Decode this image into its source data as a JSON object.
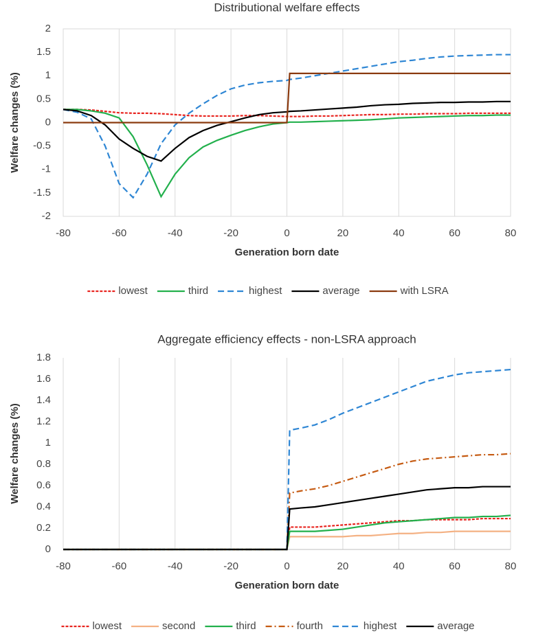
{
  "chart_data": [
    {
      "type": "line",
      "title": "Distributional welfare effects",
      "x_label": "Generation born date",
      "y_label": "Welfare changes (%)",
      "x": [
        -80,
        -75,
        -70,
        -65,
        -60,
        -55,
        -50,
        -45,
        -40,
        -35,
        -30,
        -25,
        -20,
        -15,
        -10,
        -5,
        0,
        1,
        5,
        10,
        15,
        20,
        25,
        30,
        35,
        40,
        45,
        50,
        55,
        60,
        65,
        70,
        75,
        80
      ],
      "xlim": [
        -80,
        80
      ],
      "xticks": [
        -80,
        -60,
        -40,
        -20,
        0,
        20,
        40,
        60,
        80
      ],
      "ylim": [
        -2,
        2
      ],
      "yticks": [
        -2,
        -1.5,
        -1,
        -0.5,
        0,
        0.5,
        1,
        1.5,
        2
      ],
      "grid": "x",
      "frame": true,
      "series": [
        {
          "name": "lowest",
          "color": "#e8241f",
          "dash": "short",
          "values": [
            0.28,
            0.28,
            0.27,
            0.24,
            0.21,
            0.2,
            0.2,
            0.19,
            0.17,
            0.15,
            0.14,
            0.14,
            0.14,
            0.15,
            0.15,
            0.14,
            0.13,
            0.13,
            0.13,
            0.14,
            0.14,
            0.15,
            0.16,
            0.17,
            0.17,
            0.18,
            0.18,
            0.19,
            0.19,
            0.19,
            0.2,
            0.2,
            0.2,
            0.2
          ]
        },
        {
          "name": "third",
          "color": "#22b04c",
          "dash": "solid",
          "values": [
            0.28,
            0.28,
            0.25,
            0.2,
            0.1,
            -0.3,
            -0.9,
            -1.58,
            -1.1,
            -0.75,
            -0.52,
            -0.38,
            -0.27,
            -0.17,
            -0.09,
            -0.03,
            0,
            0.01,
            0.01,
            0.02,
            0.03,
            0.04,
            0.05,
            0.06,
            0.08,
            0.1,
            0.11,
            0.12,
            0.13,
            0.14,
            0.15,
            0.15,
            0.16,
            0.16
          ]
        },
        {
          "name": "highest",
          "color": "#2e86d4",
          "dash": "long",
          "values": [
            0.28,
            0.22,
            0.08,
            -0.5,
            -1.3,
            -1.6,
            -1.1,
            -0.45,
            -0.05,
            0.2,
            0.4,
            0.58,
            0.72,
            0.8,
            0.85,
            0.88,
            0.9,
            0.92,
            0.95,
            1.0,
            1.05,
            1.1,
            1.15,
            1.2,
            1.25,
            1.3,
            1.33,
            1.37,
            1.4,
            1.42,
            1.43,
            1.44,
            1.45,
            1.45
          ]
        },
        {
          "name": "average",
          "color": "#000000",
          "dash": "solid",
          "values": [
            0.28,
            0.25,
            0.15,
            -0.05,
            -0.35,
            -0.55,
            -0.72,
            -0.82,
            -0.55,
            -0.32,
            -0.17,
            -0.06,
            0.02,
            0.1,
            0.17,
            0.21,
            0.23,
            0.24,
            0.25,
            0.27,
            0.29,
            0.31,
            0.33,
            0.36,
            0.38,
            0.39,
            0.41,
            0.42,
            0.43,
            0.43,
            0.44,
            0.44,
            0.45,
            0.45
          ]
        },
        {
          "name": "with LSRA",
          "color": "#8b3a0f",
          "dash": "solid",
          "values": [
            0,
            0,
            0,
            0,
            0,
            0,
            0,
            0,
            0,
            0,
            0,
            0,
            0,
            0,
            0,
            0,
            0,
            1.05,
            1.05,
            1.05,
            1.05,
            1.05,
            1.05,
            1.05,
            1.05,
            1.05,
            1.05,
            1.05,
            1.05,
            1.05,
            1.05,
            1.05,
            1.05,
            1.05
          ]
        }
      ]
    },
    {
      "type": "line",
      "title": "Aggregate efficiency effects - non-LSRA approach",
      "x_label": "Generation born date",
      "y_label": "Welfare changes (%)",
      "x": [
        -80,
        -75,
        -70,
        -65,
        -60,
        -55,
        -50,
        -45,
        -40,
        -35,
        -30,
        -25,
        -20,
        -15,
        -10,
        -5,
        0,
        1,
        5,
        10,
        15,
        20,
        25,
        30,
        35,
        40,
        45,
        50,
        55,
        60,
        65,
        70,
        75,
        80
      ],
      "xlim": [
        -80,
        80
      ],
      "xticks": [
        -80,
        -60,
        -40,
        -20,
        0,
        20,
        40,
        60,
        80
      ],
      "ylim": [
        0,
        1.8
      ],
      "yticks": [
        0,
        0.2,
        0.4,
        0.6,
        0.8,
        1,
        1.2,
        1.4,
        1.6,
        1.8
      ],
      "grid": "x",
      "frame": false,
      "series": [
        {
          "name": "lowest",
          "color": "#e8241f",
          "dash": "short",
          "values": [
            0,
            0,
            0,
            0,
            0,
            0,
            0,
            0,
            0,
            0,
            0,
            0,
            0,
            0,
            0,
            0,
            0,
            0.21,
            0.21,
            0.21,
            0.22,
            0.23,
            0.24,
            0.25,
            0.26,
            0.27,
            0.27,
            0.28,
            0.28,
            0.28,
            0.28,
            0.29,
            0.29,
            0.29
          ]
        },
        {
          "name": "second",
          "color": "#f4b183",
          "dash": "solid",
          "values": [
            0,
            0,
            0,
            0,
            0,
            0,
            0,
            0,
            0,
            0,
            0,
            0,
            0,
            0,
            0,
            0,
            0,
            0.12,
            0.12,
            0.12,
            0.12,
            0.12,
            0.13,
            0.13,
            0.14,
            0.15,
            0.15,
            0.16,
            0.16,
            0.17,
            0.17,
            0.17,
            0.17,
            0.17
          ]
        },
        {
          "name": "third",
          "color": "#22b04c",
          "dash": "solid",
          "values": [
            0,
            0,
            0,
            0,
            0,
            0,
            0,
            0,
            0,
            0,
            0,
            0,
            0,
            0,
            0,
            0,
            0,
            0.17,
            0.17,
            0.17,
            0.18,
            0.19,
            0.21,
            0.23,
            0.25,
            0.26,
            0.27,
            0.28,
            0.29,
            0.3,
            0.3,
            0.31,
            0.31,
            0.32
          ]
        },
        {
          "name": "fourth",
          "color": "#c55a11",
          "dash": "dashdot",
          "values": [
            0,
            0,
            0,
            0,
            0,
            0,
            0,
            0,
            0,
            0,
            0,
            0,
            0,
            0,
            0,
            0,
            0,
            0.53,
            0.55,
            0.57,
            0.6,
            0.64,
            0.68,
            0.72,
            0.76,
            0.8,
            0.83,
            0.85,
            0.86,
            0.87,
            0.88,
            0.89,
            0.89,
            0.9
          ]
        },
        {
          "name": "highest",
          "color": "#2e86d4",
          "dash": "long",
          "values": [
            0,
            0,
            0,
            0,
            0,
            0,
            0,
            0,
            0,
            0,
            0,
            0,
            0,
            0,
            0,
            0,
            0,
            1.12,
            1.14,
            1.17,
            1.22,
            1.28,
            1.33,
            1.38,
            1.43,
            1.48,
            1.53,
            1.58,
            1.61,
            1.64,
            1.66,
            1.67,
            1.68,
            1.69
          ]
        },
        {
          "name": "average",
          "color": "#000000",
          "dash": "solid",
          "values": [
            0,
            0,
            0,
            0,
            0,
            0,
            0,
            0,
            0,
            0,
            0,
            0,
            0,
            0,
            0,
            0,
            0,
            0.38,
            0.39,
            0.4,
            0.42,
            0.44,
            0.46,
            0.48,
            0.5,
            0.52,
            0.54,
            0.56,
            0.57,
            0.58,
            0.58,
            0.59,
            0.59,
            0.59
          ]
        }
      ]
    }
  ]
}
